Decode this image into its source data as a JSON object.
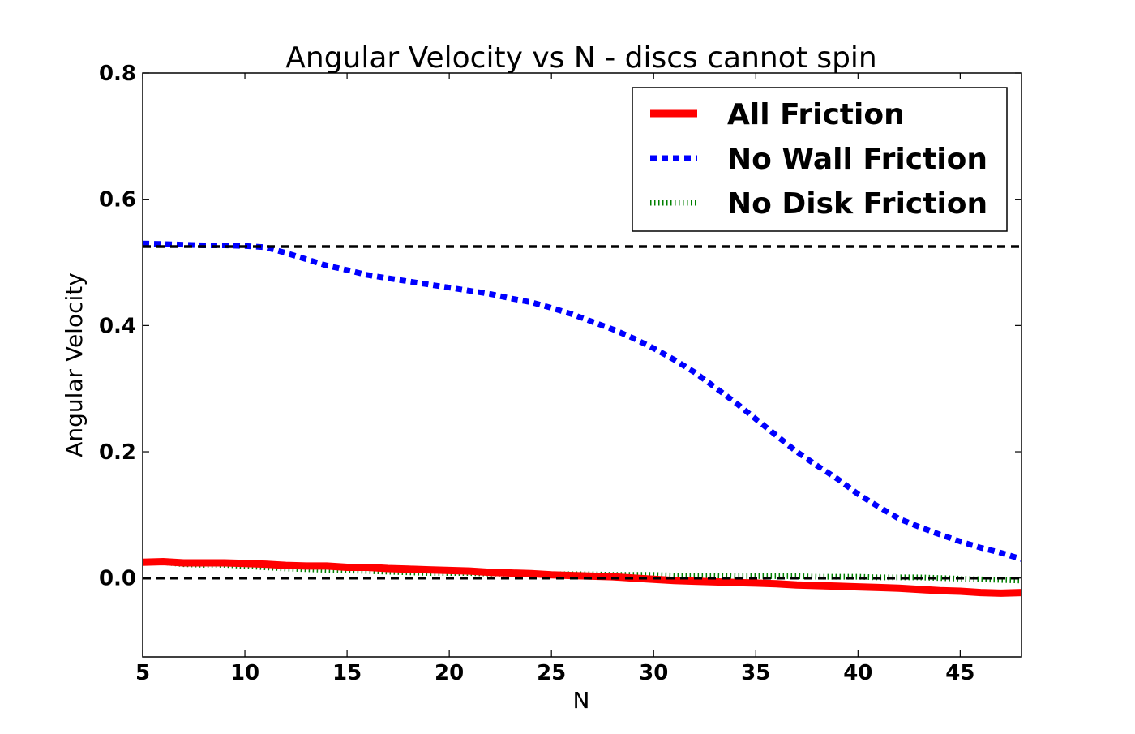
{
  "chart_data": {
    "type": "line",
    "title": "Angular Velocity vs N - discs cannot spin",
    "xlabel": "N",
    "ylabel": "Angular Velocity",
    "xlim": [
      5,
      48
    ],
    "ylim": [
      -0.125,
      0.8
    ],
    "xticks": [
      5,
      10,
      15,
      20,
      25,
      30,
      35,
      40,
      45
    ],
    "yticks": [
      0.0,
      0.2,
      0.4,
      0.6,
      0.8
    ],
    "xtick_labels": [
      "5",
      "10",
      "15",
      "20",
      "25",
      "30",
      "35",
      "40",
      "45"
    ],
    "ytick_labels": [
      "0.0",
      "0.2",
      "0.4",
      "0.6",
      "0.8"
    ],
    "grid": false,
    "legend_position": "top-right",
    "reference_lines": [
      0.525,
      0.0
    ],
    "series": [
      {
        "name": "All Friction",
        "color": "#ff0000",
        "style": "solid",
        "x": [
          5,
          6,
          7,
          8,
          9,
          10,
          11,
          12,
          13,
          14,
          15,
          16,
          17,
          18,
          19,
          20,
          21,
          22,
          23,
          24,
          25,
          26,
          27,
          28,
          29,
          30,
          31,
          32,
          33,
          34,
          35,
          36,
          37,
          38,
          39,
          40,
          41,
          42,
          43,
          44,
          45,
          46,
          47,
          48
        ],
        "y": [
          0.025,
          0.026,
          0.024,
          0.024,
          0.024,
          0.023,
          0.022,
          0.02,
          0.019,
          0.019,
          0.017,
          0.017,
          0.015,
          0.014,
          0.013,
          0.012,
          0.011,
          0.009,
          0.008,
          0.007,
          0.005,
          0.004,
          0.003,
          0.002,
          0.0,
          -0.002,
          -0.004,
          -0.005,
          -0.006,
          -0.007,
          -0.008,
          -0.009,
          -0.011,
          -0.012,
          -0.013,
          -0.014,
          -0.015,
          -0.016,
          -0.018,
          -0.02,
          -0.021,
          -0.023,
          -0.024,
          -0.023
        ]
      },
      {
        "name": "No Wall Friction",
        "color": "#0000ff",
        "style": "dotted",
        "x": [
          5,
          6,
          7,
          8,
          9,
          10,
          11,
          12,
          13,
          14,
          15,
          16,
          17,
          18,
          19,
          20,
          21,
          22,
          23,
          24,
          25,
          26,
          27,
          28,
          29,
          30,
          31,
          32,
          33,
          34,
          35,
          36,
          37,
          38,
          39,
          40,
          41,
          42,
          43,
          44,
          45,
          46,
          47,
          48
        ],
        "y": [
          0.53,
          0.529,
          0.528,
          0.527,
          0.527,
          0.526,
          0.524,
          0.515,
          0.505,
          0.495,
          0.488,
          0.48,
          0.475,
          0.47,
          0.465,
          0.46,
          0.455,
          0.45,
          0.443,
          0.437,
          0.428,
          0.418,
          0.406,
          0.394,
          0.38,
          0.364,
          0.346,
          0.326,
          0.302,
          0.278,
          0.252,
          0.226,
          0.2,
          0.178,
          0.157,
          0.133,
          0.113,
          0.094,
          0.081,
          0.069,
          0.058,
          0.048,
          0.04,
          0.03
        ]
      },
      {
        "name": "No Disk Friction",
        "color": "#007f00",
        "style": "hatched",
        "x": [
          5,
          6,
          7,
          8,
          9,
          10,
          11,
          12,
          13,
          14,
          15,
          16,
          17,
          18,
          19,
          20,
          21,
          22,
          23,
          24,
          25,
          26,
          27,
          28,
          29,
          30,
          31,
          32,
          33,
          34,
          35,
          36,
          37,
          38,
          39,
          40,
          41,
          42,
          43,
          44,
          45,
          46,
          47,
          48
        ],
        "y": [
          0.026,
          0.025,
          0.022,
          0.021,
          0.021,
          0.019,
          0.017,
          0.015,
          0.014,
          0.013,
          0.012,
          0.011,
          0.01,
          0.009,
          0.008,
          0.008,
          0.008,
          0.007,
          0.007,
          0.006,
          0.006,
          0.006,
          0.006,
          0.005,
          0.005,
          0.005,
          0.004,
          0.004,
          0.004,
          0.003,
          0.003,
          0.003,
          0.003,
          0.002,
          0.002,
          0.002,
          0.001,
          0.001,
          0.001,
          0.0,
          -0.001,
          -0.002,
          -0.003,
          -0.004
        ]
      }
    ]
  }
}
